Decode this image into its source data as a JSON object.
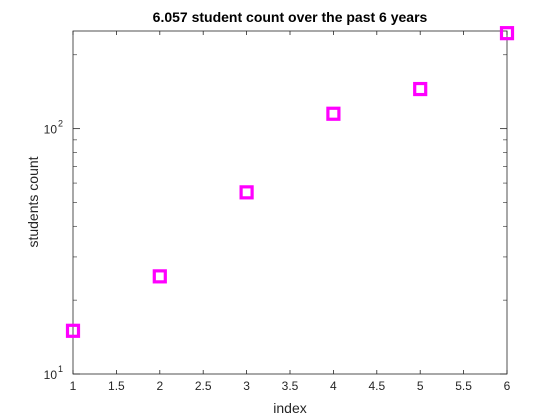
{
  "chart_data": {
    "type": "scatter",
    "title": "6.057 student count over the past 6 years",
    "xlabel": "index",
    "ylabel": "students count",
    "x": [
      1,
      2,
      3,
      4,
      5,
      6
    ],
    "y": [
      15,
      25,
      55,
      115,
      145,
      245
    ],
    "xlim": [
      1,
      6
    ],
    "ylim": [
      10,
      250
    ],
    "yscale": "log",
    "xticks": [
      "1",
      "1.5",
      "2",
      "2.5",
      "3",
      "3.5",
      "4",
      "4.5",
      "5",
      "5.5",
      "6"
    ],
    "xtick_values": [
      1,
      1.5,
      2,
      2.5,
      3,
      3.5,
      4,
      4.5,
      5,
      5.5,
      6
    ],
    "ytick_labels": [
      {
        "value": 10,
        "base": "10",
        "exponent": "1"
      },
      {
        "value": 100,
        "base": "10",
        "exponent": "2"
      }
    ],
    "marker": "square",
    "marker_color": "#ff00ff",
    "grid": false,
    "box": true
  }
}
